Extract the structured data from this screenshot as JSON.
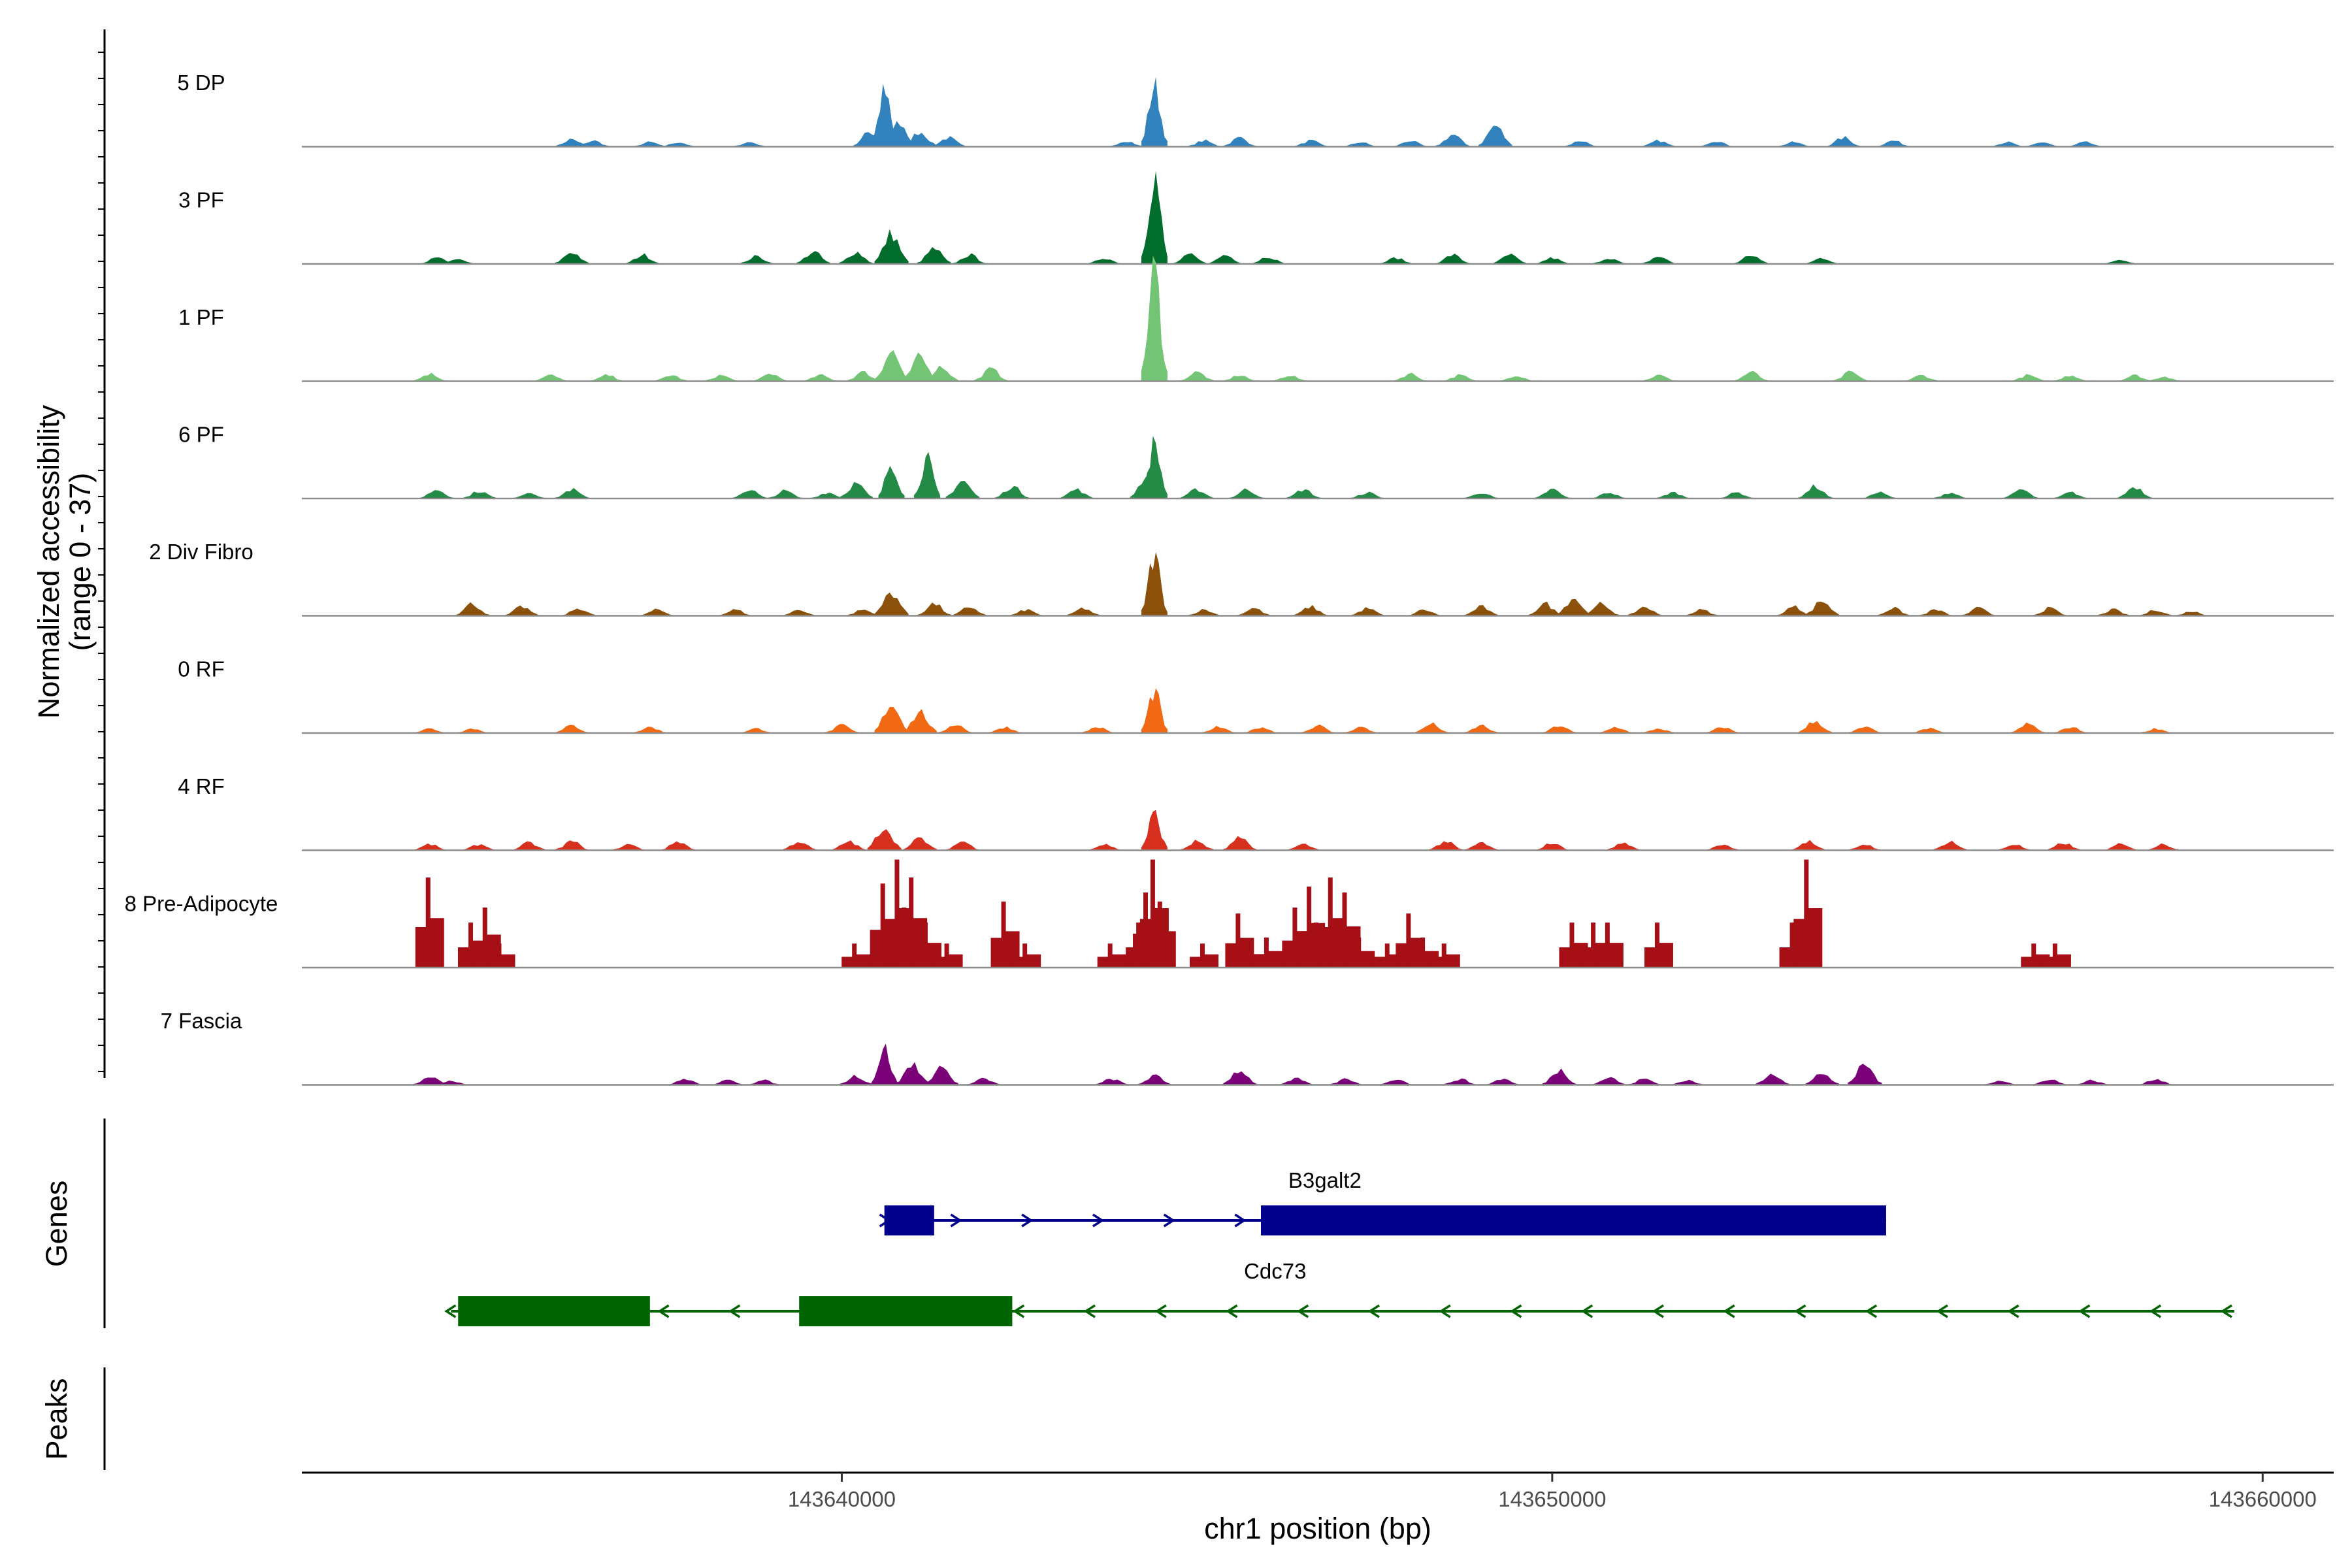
{
  "chart_data": {
    "type": "area",
    "title": "",
    "ylabel": "Normalized accessibility\n(range 0 - 37)",
    "xlabel": "chr1 position (bp)",
    "ylim": [
      0,
      37
    ],
    "xlim": [
      143632400,
      143661000
    ],
    "x_ticks": [
      {
        "value": 143640000,
        "label": "143640000"
      },
      {
        "value": 143650000,
        "label": "143650000"
      },
      {
        "value": 143660000,
        "label": "143660000"
      }
    ],
    "tracks": [
      {
        "name": "5 DP",
        "color": "#3182bd",
        "peaks": [
          [
            143636200,
            2.5
          ],
          [
            143636500,
            2
          ],
          [
            143637300,
            1.5
          ],
          [
            143637700,
            1.5
          ],
          [
            143638700,
            1.5
          ],
          [
            143640400,
            5
          ],
          [
            143640600,
            18
          ],
          [
            143640800,
            8
          ],
          [
            143641100,
            5
          ],
          [
            143641500,
            3
          ],
          [
            143644000,
            2
          ],
          [
            143644400,
            20
          ],
          [
            143645100,
            2
          ],
          [
            143645600,
            3
          ],
          [
            143646600,
            2
          ],
          [
            143647300,
            1.5
          ],
          [
            143648000,
            2
          ],
          [
            143648600,
            4
          ],
          [
            143649200,
            7
          ],
          [
            143650400,
            2
          ],
          [
            143651500,
            2
          ],
          [
            143652300,
            2
          ],
          [
            143653400,
            1.5
          ],
          [
            143654100,
            3
          ],
          [
            143654800,
            2
          ],
          [
            143656400,
            1.5
          ],
          [
            143656900,
            1.5
          ],
          [
            143657500,
            1.5
          ]
        ]
      },
      {
        "name": "3 PF",
        "color": "#006d2c",
        "peaks": [
          [
            143634300,
            2
          ],
          [
            143634600,
            1.5
          ],
          [
            143636200,
            4
          ],
          [
            143637200,
            3
          ],
          [
            143638800,
            2.5
          ],
          [
            143639600,
            4
          ],
          [
            143640200,
            4
          ],
          [
            143640700,
            10
          ],
          [
            143641300,
            5
          ],
          [
            143641800,
            3
          ],
          [
            143643700,
            2
          ],
          [
            143644400,
            30
          ],
          [
            143644900,
            3
          ],
          [
            143645400,
            3
          ],
          [
            143646000,
            2.5
          ],
          [
            143647800,
            2
          ],
          [
            143648600,
            3
          ],
          [
            143649400,
            3
          ],
          [
            143650000,
            2
          ],
          [
            143650800,
            2
          ],
          [
            143651500,
            2.5
          ],
          [
            143652800,
            3
          ],
          [
            143653800,
            2
          ],
          [
            143658000,
            1.5
          ]
        ]
      },
      {
        "name": "1 PF",
        "color": "#74c476",
        "peaks": [
          [
            143634200,
            2.5
          ],
          [
            143635900,
            2
          ],
          [
            143636700,
            2
          ],
          [
            143637600,
            2
          ],
          [
            143638300,
            2
          ],
          [
            143639000,
            2.5
          ],
          [
            143639700,
            2
          ],
          [
            143640300,
            3
          ],
          [
            143640700,
            10
          ],
          [
            143641100,
            8
          ],
          [
            143641400,
            5
          ],
          [
            143642100,
            4
          ],
          [
            143644400,
            37
          ],
          [
            143645000,
            3
          ],
          [
            143645600,
            2
          ],
          [
            143646300,
            2
          ],
          [
            143648000,
            2.5
          ],
          [
            143648700,
            2
          ],
          [
            143649500,
            2
          ],
          [
            143651500,
            2
          ],
          [
            143652800,
            3
          ],
          [
            143654200,
            3
          ],
          [
            143655200,
            2
          ],
          [
            143656700,
            2
          ],
          [
            143657300,
            2
          ],
          [
            143658200,
            2
          ],
          [
            143658600,
            1.5
          ]
        ]
      },
      {
        "name": "6 PF",
        "color": "#238b45",
        "peaks": [
          [
            143634300,
            3
          ],
          [
            143634900,
            2.5
          ],
          [
            143635600,
            2
          ],
          [
            143636200,
            3
          ],
          [
            143638700,
            3
          ],
          [
            143639200,
            2.5
          ],
          [
            143639800,
            2
          ],
          [
            143640200,
            5
          ],
          [
            143640700,
            12
          ],
          [
            143641200,
            13
          ],
          [
            143641700,
            6
          ],
          [
            143642400,
            4
          ],
          [
            143643300,
            3
          ],
          [
            143644300,
            8
          ],
          [
            143644400,
            18
          ],
          [
            143645000,
            3
          ],
          [
            143645700,
            3
          ],
          [
            143646500,
            3
          ],
          [
            143647400,
            2
          ],
          [
            143649000,
            2
          ],
          [
            143650000,
            3
          ],
          [
            143650800,
            2
          ],
          [
            143651700,
            2
          ],
          [
            143652600,
            2
          ],
          [
            143653700,
            4
          ],
          [
            143654600,
            2
          ],
          [
            143655600,
            2
          ],
          [
            143656600,
            3
          ],
          [
            143657300,
            2
          ],
          [
            143658200,
            4
          ]
        ]
      },
      {
        "name": "2 Div Fibro",
        "color": "#8c510a",
        "peaks": [
          [
            143634800,
            4
          ],
          [
            143635500,
            3
          ],
          [
            143636300,
            2.5
          ],
          [
            143637400,
            2
          ],
          [
            143638500,
            2
          ],
          [
            143639400,
            2
          ],
          [
            143640300,
            2
          ],
          [
            143640700,
            8
          ],
          [
            143641300,
            4
          ],
          [
            143641800,
            3
          ],
          [
            143642600,
            2
          ],
          [
            143643400,
            2.5
          ],
          [
            143644400,
            20
          ],
          [
            143645100,
            2
          ],
          [
            143645800,
            2.5
          ],
          [
            143646600,
            3
          ],
          [
            143647400,
            2.5
          ],
          [
            143648200,
            2
          ],
          [
            143649000,
            3
          ],
          [
            143649900,
            4
          ],
          [
            143650300,
            6
          ],
          [
            143650700,
            4
          ],
          [
            143651300,
            3
          ],
          [
            143652100,
            2
          ],
          [
            143653400,
            3
          ],
          [
            143653800,
            5
          ],
          [
            143654800,
            2.5
          ],
          [
            143655400,
            2
          ],
          [
            143656000,
            2.5
          ],
          [
            143657000,
            2.5
          ],
          [
            143657900,
            2
          ],
          [
            143658500,
            2
          ],
          [
            143659000,
            1.5
          ]
        ]
      },
      {
        "name": "0 RF",
        "color": "#f16913",
        "peaks": [
          [
            143634200,
            1.5
          ],
          [
            143634800,
            1.5
          ],
          [
            143636200,
            2.5
          ],
          [
            143637300,
            2
          ],
          [
            143638800,
            1.5
          ],
          [
            143640000,
            2.5
          ],
          [
            143640700,
            10
          ],
          [
            143641100,
            7
          ],
          [
            143641600,
            3
          ],
          [
            143642300,
            2
          ],
          [
            143643600,
            2
          ],
          [
            143644400,
            14
          ],
          [
            143645300,
            2
          ],
          [
            143645900,
            2
          ],
          [
            143646700,
            2.5
          ],
          [
            143647300,
            2
          ],
          [
            143648300,
            3
          ],
          [
            143649000,
            2.5
          ],
          [
            143650100,
            2.5
          ],
          [
            143650900,
            2
          ],
          [
            143651500,
            1.5
          ],
          [
            143652400,
            2
          ],
          [
            143653700,
            4
          ],
          [
            143654400,
            2
          ],
          [
            143655300,
            1.5
          ],
          [
            143656700,
            3
          ],
          [
            143657300,
            2
          ],
          [
            143658500,
            1.5
          ]
        ]
      },
      {
        "name": "4 RF",
        "color": "#d7301f",
        "peaks": [
          [
            143634200,
            2
          ],
          [
            143634900,
            2
          ],
          [
            143635600,
            2.5
          ],
          [
            143636200,
            3
          ],
          [
            143637000,
            2
          ],
          [
            143637700,
            3
          ],
          [
            143639400,
            3
          ],
          [
            143640100,
            3
          ],
          [
            143640600,
            8
          ],
          [
            143641100,
            4
          ],
          [
            143641700,
            3
          ],
          [
            143643700,
            2
          ],
          [
            143644400,
            12
          ],
          [
            143645000,
            3
          ],
          [
            143645600,
            4
          ],
          [
            143646500,
            2
          ],
          [
            143648500,
            3
          ],
          [
            143649000,
            2.5
          ],
          [
            143650000,
            2.5
          ],
          [
            143651000,
            2.5
          ],
          [
            143652400,
            2
          ],
          [
            143653600,
            3
          ],
          [
            143654400,
            2
          ],
          [
            143655600,
            3
          ],
          [
            143656500,
            2
          ],
          [
            143657200,
            2.5
          ],
          [
            143658000,
            2
          ],
          [
            143658600,
            2
          ]
        ]
      },
      {
        "name": "8 Pre-Adipocyte",
        "color": "#a50f15",
        "peaks": [
          [
            143634200,
            30
          ],
          [
            143634800,
            15
          ],
          [
            143635000,
            20
          ],
          [
            143635200,
            8
          ],
          [
            143640200,
            8
          ],
          [
            143640600,
            28
          ],
          [
            143640800,
            36
          ],
          [
            143640900,
            20
          ],
          [
            143641000,
            30
          ],
          [
            143641200,
            15
          ],
          [
            143641500,
            8
          ],
          [
            143642300,
            22
          ],
          [
            143642600,
            8
          ],
          [
            143643800,
            8
          ],
          [
            143644200,
            15
          ],
          [
            143644300,
            25
          ],
          [
            143644400,
            36
          ],
          [
            143644500,
            22
          ],
          [
            143645100,
            8
          ],
          [
            143645600,
            18
          ],
          [
            143646000,
            10
          ],
          [
            143646400,
            20
          ],
          [
            143646600,
            27
          ],
          [
            143646700,
            15
          ],
          [
            143646900,
            30
          ],
          [
            143647100,
            25
          ],
          [
            143647300,
            10
          ],
          [
            143647700,
            8
          ],
          [
            143648000,
            18
          ],
          [
            143648200,
            10
          ],
          [
            143648500,
            8
          ],
          [
            143650300,
            15
          ],
          [
            143650600,
            15
          ],
          [
            143650800,
            15
          ],
          [
            143651500,
            15
          ],
          [
            143653400,
            15
          ],
          [
            143653600,
            36
          ],
          [
            143656800,
            8
          ],
          [
            143657100,
            8
          ]
        ]
      },
      {
        "name": "7 Fascia",
        "color": "#7a0177",
        "peaks": [
          [
            143634200,
            3
          ],
          [
            143634500,
            1.5
          ],
          [
            143637800,
            2
          ],
          [
            143638400,
            1.5
          ],
          [
            143638900,
            1.5
          ],
          [
            143640200,
            3
          ],
          [
            143640600,
            12
          ],
          [
            143641000,
            7
          ],
          [
            143641400,
            6
          ],
          [
            143642000,
            2
          ],
          [
            143643800,
            2
          ],
          [
            143644400,
            3
          ],
          [
            143645600,
            5
          ],
          [
            143646400,
            2
          ],
          [
            143647100,
            2
          ],
          [
            143647800,
            2
          ],
          [
            143648700,
            2
          ],
          [
            143649300,
            2
          ],
          [
            143650100,
            5
          ],
          [
            143650800,
            2.5
          ],
          [
            143651300,
            2
          ],
          [
            143651900,
            1.5
          ],
          [
            143653100,
            4
          ],
          [
            143653800,
            4
          ],
          [
            143654400,
            7
          ],
          [
            143656300,
            1.5
          ],
          [
            143657000,
            2
          ],
          [
            143657600,
            1.5
          ],
          [
            143658500,
            2
          ]
        ]
      }
    ],
    "genes_title": "Genes",
    "peaks_title": "Peaks",
    "genes": [
      {
        "name": "B3galt2",
        "strand": "+",
        "color": "#00008b",
        "start": 143640600,
        "end": 143654700,
        "exons": [
          [
            143640600,
            143641300
          ],
          [
            143645900,
            143654700
          ]
        ],
        "label_pos": 143646800
      },
      {
        "name": "Cdc73",
        "strand": "-",
        "color": "#006400",
        "start": 143634500,
        "end": 143659600,
        "exons": [
          [
            143634600,
            143637300
          ],
          [
            143639400,
            143642400
          ]
        ],
        "label_pos": 143646100
      }
    ]
  }
}
